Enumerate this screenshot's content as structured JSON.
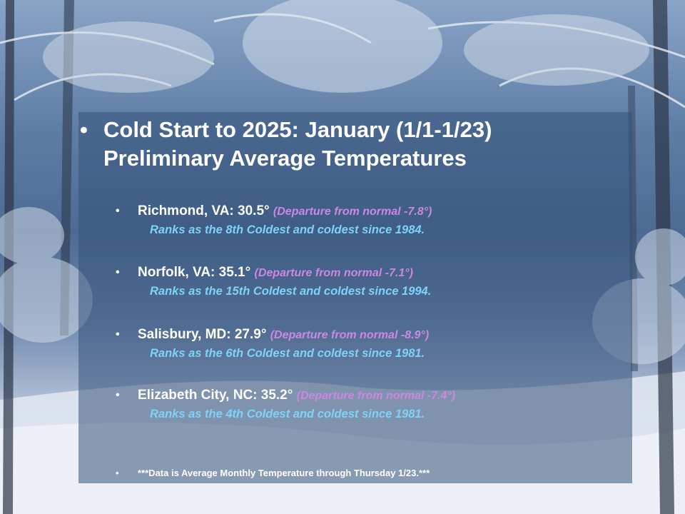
{
  "title": {
    "bullet": "•",
    "line1": "Cold Start to 2025: January (1/1-1/23)",
    "line2": "Preliminary Average Temperatures"
  },
  "items": [
    {
      "bullet": "•",
      "label": "Richmond, VA:  30.5°",
      "departure": "(Departure from normal -7.8°)",
      "rank": "Ranks as the 8th Coldest and coldest since 1984."
    },
    {
      "bullet": "•",
      "label": "Norfolk, VA: 35.1°",
      "departure": "(Departure from normal -7.1°)",
      "rank": "Ranks as the 15th Coldest and coldest since 1994."
    },
    {
      "bullet": "•",
      "label": "Salisbury, MD: 27.9°",
      "departure": "(Departure from normal -8.9°)",
      "rank": "Ranks as the 6th Coldest and coldest since 1981."
    },
    {
      "bullet": "•",
      "label": "Elizabeth City, NC: 35.2°",
      "departure": "(Departure from normal -7.4°)",
      "rank": "Ranks as the 4th Coldest and coldest since 1981."
    }
  ],
  "note": {
    "bullet": "•",
    "text": "***Data is Average Monthly Temperature through Thursday 1/23.***"
  },
  "colors": {
    "title": "#ffffff",
    "departure": "#cc88e0",
    "rank": "#7fd2f5",
    "panel": "#34527a"
  }
}
